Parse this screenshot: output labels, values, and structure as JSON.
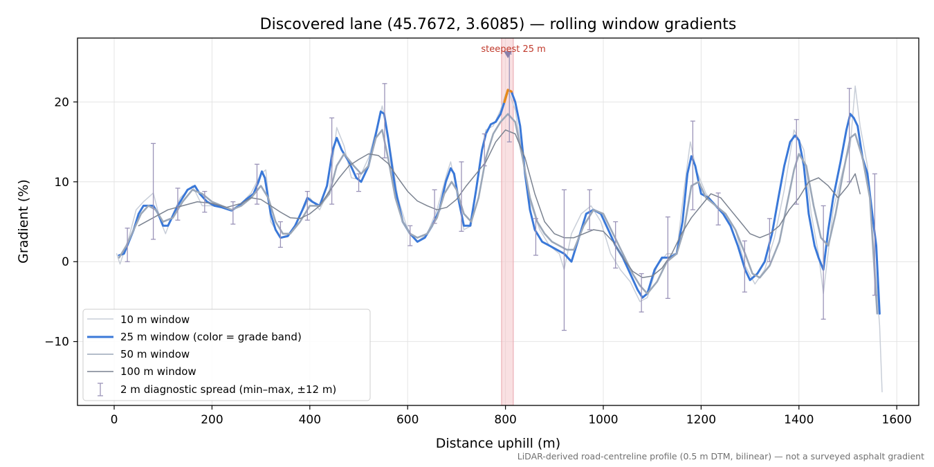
{
  "chart_data": {
    "type": "line",
    "title": "Discovered lane (45.7672, 3.6085) — rolling window gradients",
    "xlabel": "Distance uphill (m)",
    "ylabel": "Gradient (%)",
    "xlim": [
      -75,
      1645
    ],
    "ylim": [
      -18,
      28
    ],
    "x_ticks": [
      0,
      200,
      400,
      600,
      800,
      1000,
      1200,
      1400,
      1600
    ],
    "y_ticks": [
      -10,
      0,
      10,
      20
    ],
    "x_tick_labels": [
      "0",
      "200",
      "400",
      "600",
      "800",
      "1000",
      "1200",
      "1400",
      "1600"
    ],
    "y_tick_labels": [
      "−10",
      "0",
      "10",
      "20"
    ],
    "grid": true,
    "legend_location": "lower-left",
    "annotation": "steepest 25 m",
    "steepest_segment": {
      "x_start": 792,
      "x_end": 816,
      "marker_x": 805,
      "marker_y": 26
    },
    "colors": {
      "w10": "#c8ced8",
      "w25": "#3a78d8",
      "w25_steep": "#e8891a",
      "w50": "#9ba7b8",
      "w100": "#7a8290",
      "errorbar": "#9a93b8",
      "highlight": "#f4c7cb"
    },
    "series": [
      {
        "name": "10 m window",
        "x": [
          5,
          12,
          20,
          30,
          45,
          60,
          80,
          95,
          105,
          120,
          135,
          160,
          180,
          200,
          220,
          240,
          260,
          280,
          300,
          310,
          320,
          340,
          360,
          380,
          400,
          420,
          440,
          455,
          470,
          485,
          500,
          520,
          540,
          548,
          560,
          580,
          600,
          620,
          640,
          660,
          680,
          688,
          700,
          715,
          730,
          750,
          760,
          775,
          790,
          800,
          808,
          820,
          835,
          850,
          870,
          890,
          910,
          920,
          935,
          955,
          975,
          995,
          1015,
          1035,
          1055,
          1075,
          1090,
          1110,
          1130,
          1150,
          1165,
          1178,
          1190,
          1210,
          1230,
          1250,
          1270,
          1290,
          1310,
          1330,
          1350,
          1370,
          1390,
          1410,
          1425,
          1440,
          1450,
          1470,
          1490,
          1505,
          1515,
          1525,
          1540,
          1555,
          1565,
          1570
        ],
        "y": [
          1.0,
          -0.3,
          1.2,
          3.0,
          6.5,
          7.5,
          8.6,
          5.0,
          3.5,
          6.0,
          8.0,
          9.5,
          7.0,
          7.0,
          6.8,
          6.5,
          7.3,
          8.6,
          11.0,
          11.5,
          5.0,
          3.0,
          3.5,
          5.8,
          8.0,
          6.5,
          9.0,
          16.8,
          14.5,
          10.5,
          10.3,
          13.0,
          17.5,
          19.5,
          16.0,
          8.0,
          4.0,
          2.5,
          3.5,
          6.5,
          11.0,
          12.5,
          9.0,
          4.0,
          4.5,
          13.0,
          16.5,
          17.0,
          19.0,
          21.0,
          21.0,
          19.0,
          13.0,
          7.5,
          4.0,
          2.0,
          1.0,
          -1.0,
          3.5,
          6.0,
          7.0,
          5.0,
          1.0,
          -1.0,
          -2.5,
          -5.0,
          -4.5,
          -0.5,
          1.0,
          1.0,
          9.0,
          15.0,
          11.5,
          8.5,
          7.0,
          6.0,
          4.0,
          -0.5,
          -2.8,
          -1.0,
          3.0,
          9.0,
          16.5,
          14.0,
          6.0,
          1.0,
          -4.0,
          6.5,
          11.5,
          14.5,
          22.0,
          17.0,
          12.0,
          0.0,
          -8.0,
          -16.3
        ]
      },
      {
        "name": "25 m window (color = grade band)",
        "x": [
          10,
          20,
          30,
          40,
          50,
          60,
          70,
          80,
          90,
          100,
          110,
          130,
          150,
          165,
          175,
          190,
          205,
          220,
          240,
          255,
          270,
          285,
          295,
          302,
          308,
          320,
          330,
          340,
          355,
          370,
          385,
          395,
          405,
          420,
          435,
          447,
          455,
          465,
          480,
          495,
          505,
          520,
          535,
          545,
          552,
          560,
          575,
          590,
          605,
          620,
          635,
          650,
          665,
          678,
          688,
          695,
          705,
          715,
          728,
          740,
          752,
          760,
          770,
          780,
          790,
          798,
          805,
          812,
          820,
          830,
          840,
          850,
          860,
          875,
          890,
          905,
          920,
          935,
          950,
          965,
          980,
          995,
          1010,
          1025,
          1040,
          1055,
          1070,
          1080,
          1090,
          1105,
          1120,
          1135,
          1150,
          1162,
          1172,
          1180,
          1188,
          1200,
          1215,
          1230,
          1245,
          1260,
          1275,
          1290,
          1300,
          1315,
          1330,
          1345,
          1358,
          1370,
          1382,
          1392,
          1400,
          1410,
          1420,
          1432,
          1440,
          1450,
          1460,
          1470,
          1485,
          1497,
          1505,
          1512,
          1520,
          1530,
          1540,
          1550,
          1558,
          1565
        ],
        "y": [
          0.8,
          1.0,
          2.5,
          4.0,
          6.0,
          7.0,
          7.0,
          7.0,
          6.0,
          4.5,
          4.5,
          7.0,
          9.0,
          9.5,
          8.5,
          7.5,
          7.0,
          6.8,
          6.4,
          7.0,
          7.8,
          8.5,
          10.0,
          11.3,
          10.5,
          6.0,
          4.0,
          3.0,
          3.2,
          4.5,
          6.5,
          8.0,
          7.5,
          7.0,
          9.5,
          14.0,
          15.5,
          14.0,
          12.5,
          10.5,
          10.0,
          12.0,
          16.0,
          18.8,
          18.5,
          15.5,
          9.0,
          5.0,
          3.5,
          2.5,
          3.0,
          4.5,
          6.5,
          10.0,
          11.7,
          11.0,
          7.5,
          4.5,
          4.5,
          9.0,
          14.0,
          16.0,
          17.2,
          17.5,
          18.5,
          20.0,
          21.5,
          21.3,
          20.0,
          17.0,
          11.0,
          6.5,
          4.0,
          2.5,
          2.0,
          1.5,
          1.0,
          0.0,
          3.0,
          6.0,
          6.5,
          6.0,
          4.0,
          2.0,
          0.5,
          -1.5,
          -3.5,
          -4.5,
          -4.0,
          -1.0,
          0.5,
          0.5,
          1.0,
          5.0,
          11.0,
          13.2,
          12.0,
          8.5,
          8.0,
          7.0,
          6.0,
          4.5,
          2.0,
          -1.0,
          -2.3,
          -1.5,
          0.0,
          3.5,
          8.0,
          12.0,
          15.0,
          15.8,
          15.2,
          12.0,
          6.0,
          2.0,
          0.5,
          -1.0,
          4.0,
          8.0,
          12.5,
          16.5,
          18.5,
          18.0,
          17.0,
          13.0,
          11.0,
          6.0,
          2.0,
          -6.5
        ]
      },
      {
        "name": "50 m window",
        "x": [
          10,
          25,
          40,
          55,
          70,
          85,
          100,
          120,
          140,
          160,
          180,
          200,
          220,
          240,
          260,
          280,
          300,
          315,
          330,
          345,
          360,
          380,
          400,
          420,
          440,
          455,
          470,
          490,
          505,
          520,
          535,
          548,
          560,
          575,
          590,
          605,
          620,
          640,
          660,
          675,
          690,
          700,
          715,
          730,
          745,
          760,
          775,
          790,
          805,
          820,
          835,
          850,
          865,
          880,
          895,
          910,
          925,
          940,
          960,
          980,
          1000,
          1020,
          1040,
          1060,
          1075,
          1090,
          1110,
          1130,
          1150,
          1165,
          1180,
          1195,
          1210,
          1230,
          1250,
          1270,
          1290,
          1305,
          1320,
          1340,
          1360,
          1375,
          1390,
          1400,
          1415,
          1430,
          1445,
          1460,
          1475,
          1490,
          1505,
          1515,
          1530,
          1545,
          1560
        ],
        "y": [
          0.5,
          2.0,
          4.0,
          6.0,
          7.0,
          6.5,
          5.0,
          5.5,
          7.5,
          9.0,
          8.5,
          7.5,
          7.0,
          6.5,
          7.0,
          8.0,
          9.5,
          8.0,
          5.0,
          3.5,
          3.5,
          5.0,
          7.0,
          7.0,
          8.5,
          12.0,
          13.5,
          12.0,
          11.0,
          12.0,
          15.5,
          16.5,
          13.0,
          8.0,
          5.0,
          3.5,
          3.0,
          3.5,
          5.5,
          8.5,
          10.0,
          9.0,
          6.0,
          5.0,
          8.0,
          13.0,
          16.0,
          17.5,
          18.5,
          17.5,
          13.0,
          8.0,
          5.0,
          3.5,
          2.5,
          2.0,
          1.5,
          1.5,
          4.5,
          6.5,
          6.0,
          3.5,
          1.0,
          -1.5,
          -3.0,
          -4.0,
          -2.5,
          0.0,
          1.0,
          4.0,
          9.5,
          10.0,
          8.0,
          7.0,
          6.0,
          4.0,
          1.0,
          -1.5,
          -2.0,
          -0.5,
          2.5,
          7.0,
          11.5,
          13.5,
          12.0,
          7.0,
          3.0,
          2.0,
          6.0,
          11.0,
          15.5,
          16.0,
          13.0,
          8.0,
          -6.5
        ]
      },
      {
        "name": "100 m window",
        "x": [
          50,
          80,
          110,
          140,
          170,
          200,
          230,
          260,
          280,
          300,
          320,
          340,
          360,
          380,
          400,
          420,
          440,
          460,
          480,
          500,
          520,
          540,
          560,
          580,
          600,
          620,
          640,
          660,
          680,
          700,
          720,
          740,
          760,
          780,
          800,
          820,
          840,
          860,
          880,
          900,
          920,
          940,
          960,
          980,
          1000,
          1020,
          1040,
          1060,
          1080,
          1100,
          1120,
          1140,
          1160,
          1180,
          1200,
          1220,
          1240,
          1260,
          1280,
          1300,
          1320,
          1340,
          1360,
          1380,
          1400,
          1420,
          1440,
          1460,
          1480,
          1500,
          1515,
          1525
        ],
        "y": [
          4.5,
          5.5,
          6.5,
          7.0,
          7.5,
          7.3,
          6.8,
          7.3,
          8.0,
          7.8,
          7.0,
          6.2,
          5.5,
          5.4,
          6.0,
          7.0,
          8.8,
          10.5,
          12.0,
          12.8,
          13.5,
          13.3,
          12.3,
          10.5,
          8.8,
          7.6,
          7.0,
          6.5,
          6.8,
          7.8,
          9.5,
          11.0,
          12.5,
          15.0,
          16.5,
          16.0,
          13.0,
          8.5,
          5.0,
          3.5,
          3.0,
          3.0,
          3.5,
          4.0,
          3.8,
          2.5,
          0.5,
          -1.2,
          -2.0,
          -1.8,
          -0.8,
          1.0,
          3.5,
          5.5,
          7.0,
          8.5,
          8.0,
          6.5,
          5.0,
          3.5,
          3.0,
          3.5,
          4.5,
          6.5,
          8.0,
          10.0,
          10.5,
          9.5,
          8.0,
          9.5,
          11.0,
          8.5
        ]
      }
    ],
    "error_bars": {
      "name": "2 m diagnostic spread (min–max, ±12 m)",
      "x": [
        27,
        80,
        130,
        185,
        243,
        292,
        340,
        395,
        445,
        500,
        553,
        605,
        655,
        710,
        757,
        808,
        862,
        920,
        972,
        1025,
        1078,
        1132,
        1183,
        1235,
        1289,
        1340,
        1395,
        1450,
        1503,
        1555
      ],
      "lo": [
        0.0,
        2.8,
        5.2,
        6.2,
        4.7,
        7.2,
        1.8,
        5.2,
        7.2,
        8.8,
        13.0,
        2.0,
        4.8,
        3.8,
        12.0,
        15.0,
        0.8,
        -8.6,
        4.0,
        -0.8,
        -6.3,
        -4.6,
        6.5,
        4.6,
        -3.8,
        0.0,
        7.2,
        -7.2,
        10.0,
        -4.2
      ],
      "hi": [
        4.2,
        14.8,
        9.2,
        8.8,
        7.5,
        12.2,
        5.0,
        8.8,
        18.0,
        11.0,
        22.3,
        4.5,
        9.0,
        12.5,
        16.0,
        26.0,
        5.4,
        9.0,
        9.0,
        5.0,
        -1.5,
        5.6,
        17.6,
        8.6,
        2.6,
        5.4,
        17.8,
        7.0,
        21.7,
        11.0
      ]
    }
  }
}
